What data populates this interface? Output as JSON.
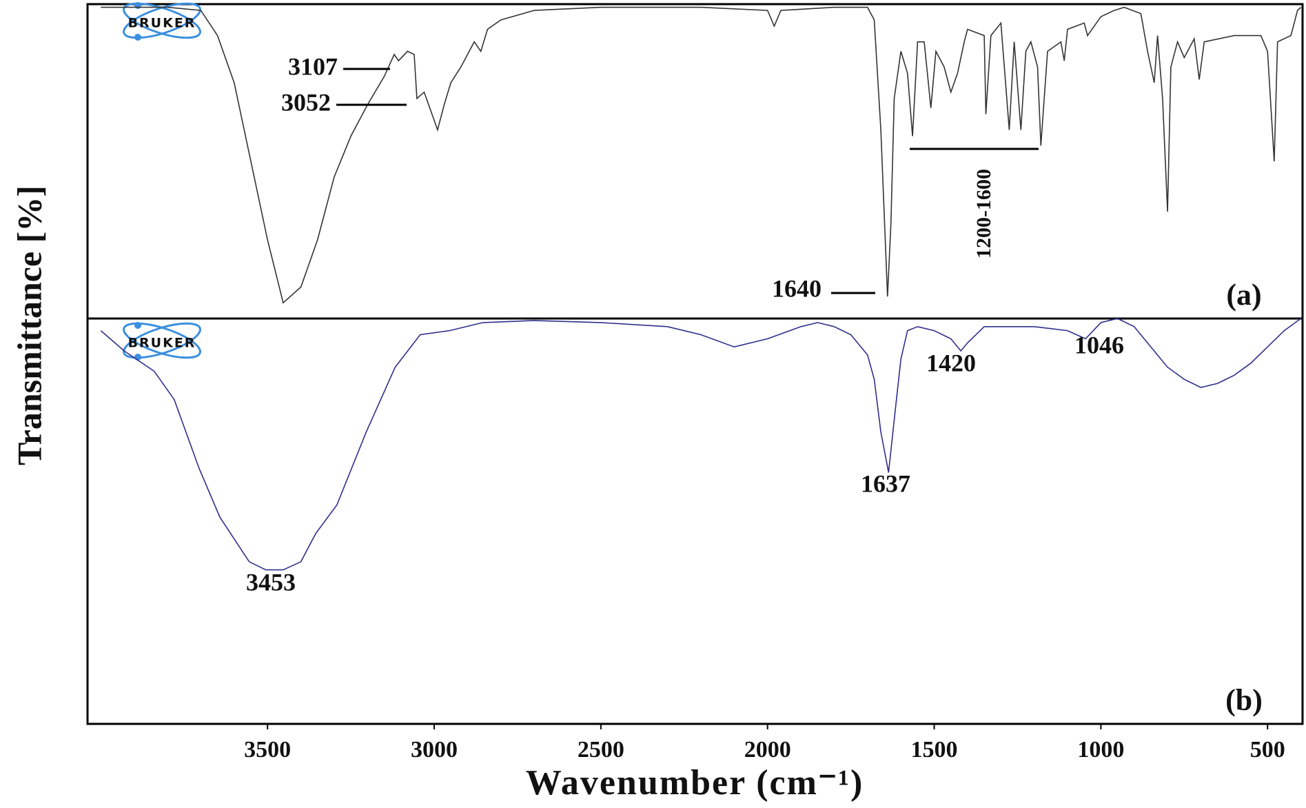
{
  "logo": "BRUKER",
  "chart_data": [
    {
      "type": "line",
      "panel_label": "(a)",
      "ylabel": "Transmittance [%]",
      "color": "#333333",
      "xlim": [
        4040,
        395
      ],
      "ylim": [
        0,
        100
      ],
      "x": [
        4000,
        3800,
        3700,
        3650,
        3600,
        3550,
        3500,
        3453,
        3400,
        3350,
        3300,
        3250,
        3200,
        3150,
        3120,
        3107,
        3080,
        3060,
        3052,
        3030,
        3010,
        2990,
        2970,
        2950,
        2920,
        2900,
        2880,
        2860,
        2840,
        2800,
        2700,
        2500,
        2200,
        2000,
        1980,
        1960,
        1800,
        1700,
        1680,
        1660,
        1645,
        1640,
        1630,
        1620,
        1600,
        1580,
        1565,
        1550,
        1530,
        1510,
        1495,
        1470,
        1450,
        1430,
        1410,
        1400,
        1350,
        1345,
        1330,
        1300,
        1275,
        1260,
        1240,
        1225,
        1210,
        1190,
        1180,
        1160,
        1120,
        1110,
        1100,
        1050,
        1040,
        1000,
        960,
        930,
        880,
        860,
        840,
        830,
        815,
        800,
        790,
        770,
        750,
        720,
        705,
        690,
        600,
        520,
        500,
        480,
        470,
        430,
        410,
        400
      ],
      "y": [
        99,
        99,
        98,
        90,
        75,
        50,
        25,
        5,
        10,
        25,
        45,
        58,
        68,
        77,
        84,
        82,
        85,
        84,
        70,
        72,
        66,
        60,
        68,
        75,
        80,
        84,
        88,
        85,
        92,
        95,
        98,
        99,
        99,
        98,
        93,
        98,
        99,
        99,
        95,
        60,
        20,
        7,
        30,
        70,
        85,
        78,
        58,
        88,
        88,
        67,
        85,
        80,
        72,
        78,
        88,
        92,
        90,
        65,
        90,
        94,
        60,
        88,
        60,
        85,
        88,
        80,
        55,
        85,
        88,
        82,
        92,
        94,
        90,
        96,
        98,
        99,
        97,
        85,
        75,
        90,
        70,
        34,
        80,
        88,
        83,
        89,
        76,
        88,
        90,
        90,
        85,
        50,
        88,
        90,
        98,
        99
      ],
      "annotations": [
        3107,
        3052,
        1640
      ],
      "range_label": "1200-1600"
    },
    {
      "type": "line",
      "panel_label": "(b)",
      "xlabel": "Wavenumber (cm⁻¹)",
      "color": "#2e2e8c",
      "xlim": [
        4040,
        395
      ],
      "ylim": [
        0,
        100
      ],
      "xticks": [
        3500,
        3000,
        2500,
        2000,
        1500,
        1000,
        500
      ],
      "x": [
        4000,
        3930,
        3840,
        3780,
        3705,
        3643,
        3555,
        3505,
        3453,
        3400,
        3355,
        3292,
        3204,
        3117,
        3042,
        2954,
        2854,
        2700,
        2500,
        2300,
        2200,
        2100,
        2000,
        1900,
        1850,
        1800,
        1750,
        1700,
        1680,
        1660,
        1637,
        1620,
        1600,
        1580,
        1550,
        1500,
        1450,
        1420,
        1400,
        1350,
        1200,
        1100,
        1046,
        1000,
        950,
        900,
        850,
        800,
        750,
        700,
        650,
        600,
        550,
        500,
        450,
        400
      ],
      "y": [
        97,
        92,
        87,
        80,
        63,
        51,
        40,
        38,
        38,
        40,
        47,
        54,
        72,
        88,
        96,
        97,
        99,
        99.5,
        99,
        98,
        96,
        93,
        95,
        98,
        99,
        98,
        96,
        91,
        85,
        72,
        62,
        75,
        90,
        97,
        98,
        97,
        95,
        92,
        94,
        98,
        98,
        97,
        95,
        99,
        100,
        98,
        93,
        88,
        85,
        83,
        84,
        86,
        89,
        93,
        97,
        100
      ],
      "annotations": [
        3453,
        1637,
        1420,
        1046
      ]
    }
  ]
}
